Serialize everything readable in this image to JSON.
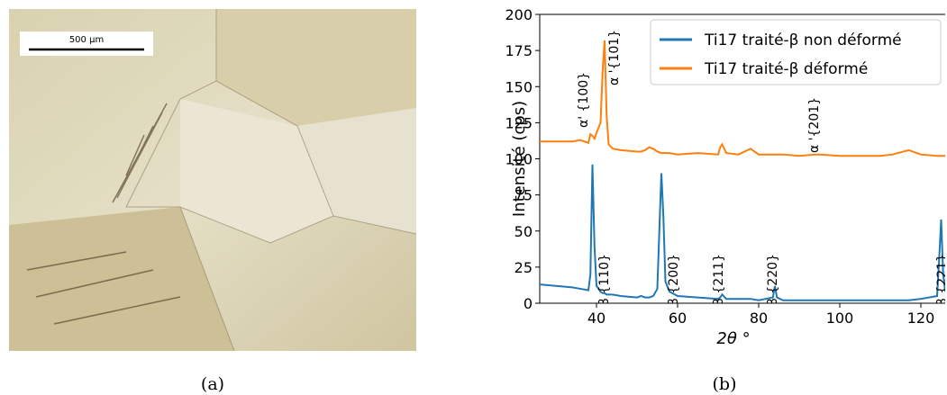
{
  "image_panel": {
    "scale_bar": "500 µm",
    "caption": "(a)"
  },
  "chart_data": {
    "type": "line",
    "caption": "(b)",
    "x_label": "2θ °",
    "y_label": "Intensité (cps)",
    "xlim": [
      26,
      126
    ],
    "ylim": [
      0,
      200
    ],
    "xticks": [
      40,
      60,
      80,
      100,
      120
    ],
    "yticks": [
      0,
      25,
      50,
      75,
      100,
      125,
      150,
      175,
      200
    ],
    "legend": "upper right",
    "x": [
      26,
      30,
      34,
      36,
      38,
      38.5,
      39,
      39.5,
      40,
      41,
      41.5,
      42,
      42.5,
      43,
      44,
      46,
      50,
      51,
      52,
      53,
      54,
      55,
      56,
      56.5,
      57,
      58,
      60,
      65,
      70,
      70.5,
      71,
      72,
      75,
      78,
      80,
      83.5,
      84,
      84.5,
      86,
      90,
      94,
      95,
      100,
      105,
      110,
      113,
      117,
      120,
      124,
      124.5,
      125,
      125.5,
      126
    ],
    "series": [
      {
        "name": "Ti17 traité-β non déformé",
        "color": "#1f77b4",
        "values": [
          13,
          12,
          11,
          10,
          9,
          20,
          96,
          40,
          12,
          8,
          7,
          7,
          6,
          6,
          6,
          5,
          4,
          5,
          4,
          4,
          5,
          10,
          90,
          60,
          15,
          8,
          5,
          4,
          3,
          4,
          6,
          3,
          3,
          3,
          2,
          4,
          12,
          4,
          2,
          2,
          2,
          2,
          2,
          2,
          2,
          2,
          2,
          3,
          5,
          30,
          58,
          20,
          8
        ]
      },
      {
        "name": "Ti17 traité-β déformé",
        "color": "#ff7f0e",
        "values": [
          112,
          112,
          112,
          113,
          111,
          117,
          116,
          114,
          118,
          125,
          160,
          182,
          130,
          110,
          107,
          106,
          105,
          105,
          106,
          108,
          107,
          105,
          104,
          104,
          104,
          104,
          103,
          104,
          103,
          108,
          110,
          104,
          103,
          107,
          103,
          103,
          103,
          103,
          103,
          102,
          103,
          103,
          102,
          102,
          102,
          103,
          106,
          103,
          102,
          102,
          102,
          102,
          102
        ]
      }
    ],
    "annotations": [
      "α' {100}",
      "α '{101}",
      "α '{201}",
      "β {110}",
      "β {200}",
      "β {211}",
      "β {220}",
      "β {221}"
    ]
  }
}
